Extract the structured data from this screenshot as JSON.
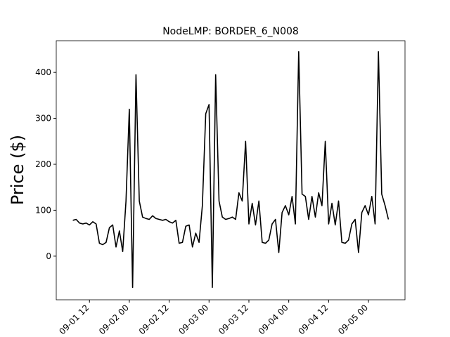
{
  "chart_data": {
    "type": "line",
    "title": "NodeLMP: BORDER_6_N008",
    "y_label": "Price ($)",
    "x": [
      "09-01 07",
      "09-01 08",
      "09-01 09",
      "09-01 10",
      "09-01 11",
      "09-01 12",
      "09-01 13",
      "09-01 14",
      "09-01 15",
      "09-01 16",
      "09-01 17",
      "09-01 18",
      "09-01 19",
      "09-01 20",
      "09-01 21",
      "09-01 22",
      "09-01 23",
      "09-02 00",
      "09-02 01",
      "09-02 02",
      "09-02 03",
      "09-02 04",
      "09-02 05",
      "09-02 06",
      "09-02 07",
      "09-02 08",
      "09-02 09",
      "09-02 10",
      "09-02 11",
      "09-02 12",
      "09-02 13",
      "09-02 14",
      "09-02 15",
      "09-02 16",
      "09-02 17",
      "09-02 18",
      "09-02 19",
      "09-02 20",
      "09-02 21",
      "09-02 22",
      "09-02 23",
      "09-03 00",
      "09-03 01",
      "09-03 02",
      "09-03 03",
      "09-03 04",
      "09-03 05",
      "09-03 06",
      "09-03 07",
      "09-03 08",
      "09-03 09",
      "09-03 10",
      "09-03 11",
      "09-03 12",
      "09-03 13",
      "09-03 14",
      "09-03 15",
      "09-03 16",
      "09-03 17",
      "09-03 18",
      "09-03 19",
      "09-03 20",
      "09-03 21",
      "09-03 22",
      "09-03 23",
      "09-04 00",
      "09-04 01",
      "09-04 02",
      "09-04 03",
      "09-04 04",
      "09-04 05",
      "09-04 06",
      "09-04 07",
      "09-04 08",
      "09-04 09",
      "09-04 10",
      "09-04 11",
      "09-04 12",
      "09-04 13",
      "09-04 14",
      "09-04 15",
      "09-04 16",
      "09-04 17",
      "09-04 18",
      "09-04 19",
      "09-04 20",
      "09-04 21",
      "09-04 22",
      "09-04 23",
      "09-05 00",
      "09-05 01",
      "09-05 02",
      "09-05 03",
      "09-05 04",
      "09-05 05",
      "09-05 06"
    ],
    "series": [
      {
        "name": "Price",
        "color": "#000000",
        "values": [
          78,
          80,
          72,
          70,
          72,
          68,
          75,
          70,
          28,
          25,
          30,
          62,
          68,
          20,
          55,
          10,
          120,
          320,
          -68,
          395,
          120,
          85,
          82,
          80,
          88,
          82,
          80,
          78,
          80,
          75,
          72,
          78,
          28,
          30,
          65,
          68,
          20,
          50,
          30,
          110,
          310,
          330,
          -68,
          395,
          120,
          85,
          80,
          82,
          85,
          80,
          138,
          120,
          250,
          70,
          115,
          68,
          120,
          30,
          28,
          35,
          70,
          80,
          8,
          95,
          110,
          90,
          130,
          70,
          445,
          135,
          130,
          80,
          130,
          85,
          138,
          110,
          250,
          70,
          115,
          68,
          120,
          30,
          28,
          35,
          70,
          80,
          8,
          95,
          110,
          90,
          130,
          70,
          445,
          135,
          110,
          80
        ]
      }
    ],
    "xlim": [
      "09-01 02",
      "09-05 11"
    ],
    "xticks": [
      "09-01 12",
      "09-02 00",
      "09-02 12",
      "09-03 00",
      "09-03 12",
      "09-04 00",
      "09-04 12",
      "09-05 00"
    ],
    "ylim": [
      -95,
      469
    ],
    "yticks": [
      0,
      100,
      200,
      300,
      400
    ]
  }
}
